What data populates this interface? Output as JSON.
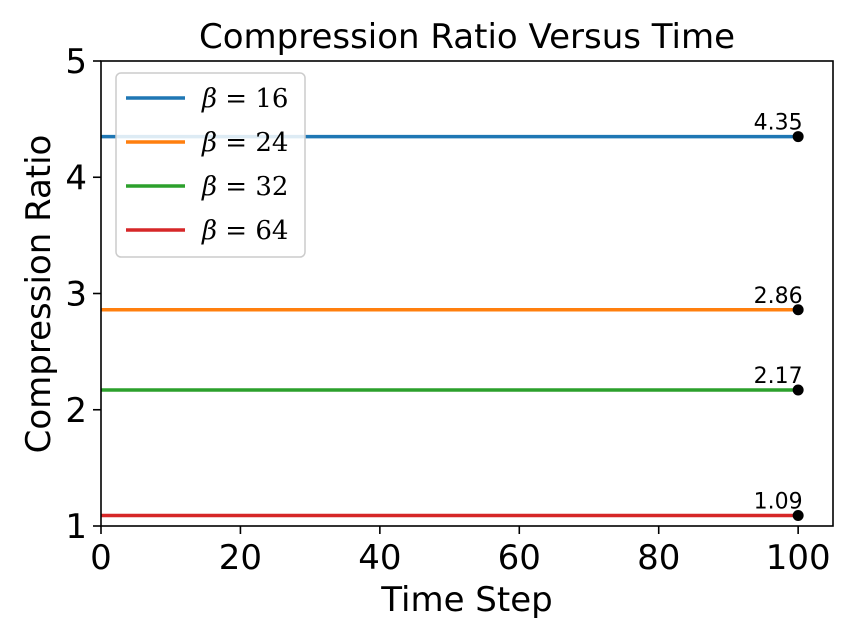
{
  "chart_data": {
    "type": "line",
    "title": "Compression Ratio Versus Time",
    "xlabel": "Time Step",
    "ylabel": "Compression Ratio",
    "xlim": [
      0,
      105
    ],
    "ylim": [
      1,
      5
    ],
    "x_ticks": [
      0,
      20,
      40,
      60,
      80,
      100
    ],
    "y_ticks": [
      1,
      2,
      3,
      4,
      5
    ],
    "x": [
      0,
      100
    ],
    "grid": false,
    "legend_position": "top-left",
    "series": [
      {
        "name": "β = 16",
        "values": [
          4.35,
          4.35
        ],
        "color": "#1f77b4",
        "end_label": "4.35"
      },
      {
        "name": "β = 24",
        "values": [
          2.86,
          2.86
        ],
        "color": "#ff7f0e",
        "end_label": "2.86"
      },
      {
        "name": "β = 32",
        "values": [
          2.17,
          2.17
        ],
        "color": "#2ca02c",
        "end_label": "2.17"
      },
      {
        "name": "β = 64",
        "values": [
          1.09,
          1.09
        ],
        "color": "#d62728",
        "end_label": "1.09"
      }
    ],
    "marker_color": "#000000"
  }
}
